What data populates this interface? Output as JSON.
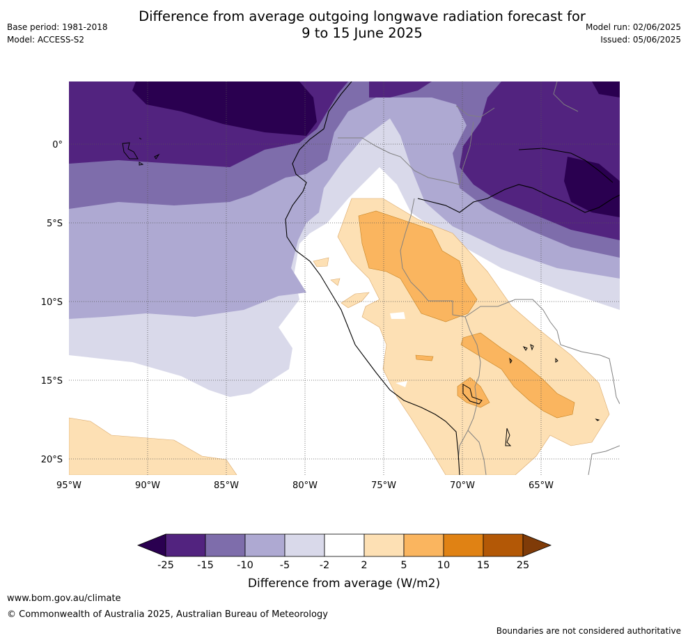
{
  "header": {
    "title_line1": "Difference from average outgoing longwave radiation forecast for",
    "title_line2": "9 to 15 June 2025",
    "base_period": "Base period: 1981-2018",
    "model": "Model: ACCESS-S2",
    "model_run": "Model run: 02/06/2025",
    "issued": "Issued: 05/06/2025"
  },
  "map": {
    "lon_labels": [
      "95°W",
      "90°W",
      "85°W",
      "80°W",
      "75°W",
      "70°W",
      "65°W"
    ],
    "lat_labels": [
      "0°",
      "5°S",
      "10°S",
      "15°S",
      "20°S"
    ]
  },
  "colorbar": {
    "ticks": [
      "-25",
      "-15",
      "-10",
      "-5",
      "-2",
      "2",
      "5",
      "10",
      "15",
      "25"
    ],
    "label": "Difference from average (W/m2)",
    "colors": [
      "#2a0050",
      "#52237f",
      "#7e6dab",
      "#aea9d2",
      "#d9d9ea",
      "#ffffff",
      "#fde0b4",
      "#fab55f",
      "#e08214",
      "#b35806",
      "#7f3b08"
    ]
  },
  "footer": {
    "url": "www.bom.gov.au/climate",
    "copyright": "© Commonwealth of Australia 2025, Australian Bureau of Meteorology",
    "disclaimer": "Boundaries are not considered authoritative"
  }
}
